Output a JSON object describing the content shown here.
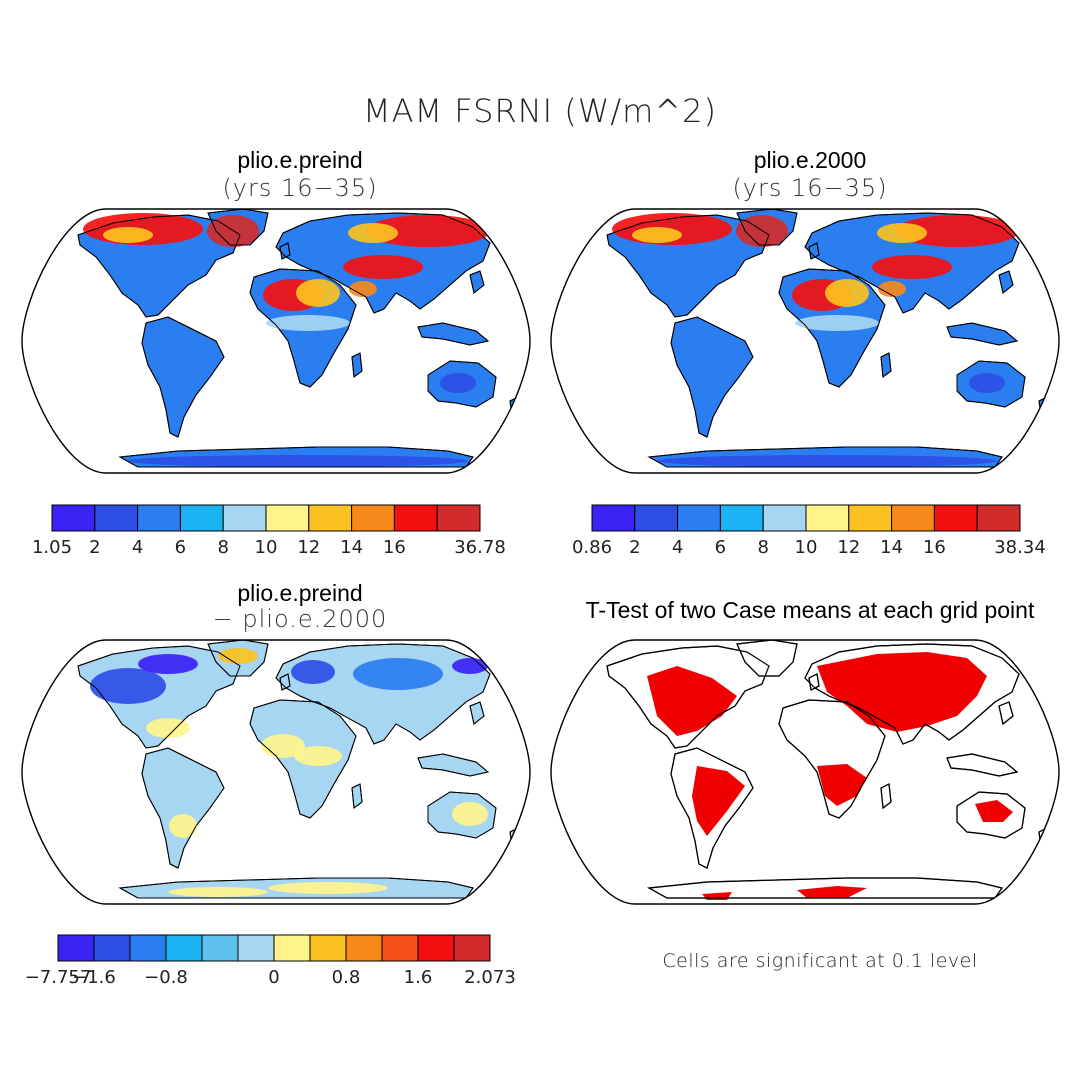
{
  "figure": {
    "title": "MAM FSRNI (W/m^2)",
    "note": "Cells are significant at 0.1 level"
  },
  "panels": [
    {
      "id": "preind",
      "name": "plio.e.preind",
      "subtitle": "(yrs 16−35)",
      "field": "absolute",
      "colorbar": {
        "colors": [
          "#3b22f5",
          "#2c4ee6",
          "#2a7ef0",
          "#1ab4f5",
          "#a6d6f2",
          "#fff48c",
          "#fbc120",
          "#f7881a",
          "#f51010",
          "#d12b2b"
        ],
        "labels": [
          "1.05",
          "2",
          "4",
          "6",
          "8",
          "10",
          "12",
          "14",
          "16",
          "",
          "36.78"
        ]
      }
    },
    {
      "id": "2000",
      "name": "plio.e.2000",
      "subtitle": "(yrs 16−35)",
      "field": "absolute",
      "colorbar": {
        "colors": [
          "#3b22f5",
          "#2c4ee6",
          "#2a7ef0",
          "#1ab4f5",
          "#a6d6f2",
          "#fff48c",
          "#fbc120",
          "#f7881a",
          "#f51010",
          "#d12b2b"
        ],
        "labels": [
          "0.86",
          "2",
          "4",
          "6",
          "8",
          "10",
          "12",
          "14",
          "16",
          "",
          "38.34"
        ]
      }
    },
    {
      "id": "diff",
      "name": "plio.e.preind",
      "subtitle": "− plio.e.2000",
      "field": "difference",
      "colorbar": {
        "colors": [
          "#3b22f5",
          "#2c4ee6",
          "#2a7ef0",
          "#1ab4f5",
          "#5fc0ee",
          "#a6d6f2",
          "#fff48c",
          "#fbc120",
          "#f7881a",
          "#f4501a",
          "#f51010",
          "#d12b2b"
        ],
        "labels": [
          "−7.757",
          "−1.6",
          "",
          "−0.8",
          "",
          "",
          "0",
          "",
          "0.8",
          "",
          "1.6",
          "",
          "2.073"
        ]
      }
    },
    {
      "id": "ttest",
      "name": "T-Test of two Case means at each grid point",
      "subtitle": "",
      "field": "significance"
    }
  ],
  "map_features": {
    "land_color_significance": "#f00000",
    "coastline_color": "#000000"
  }
}
